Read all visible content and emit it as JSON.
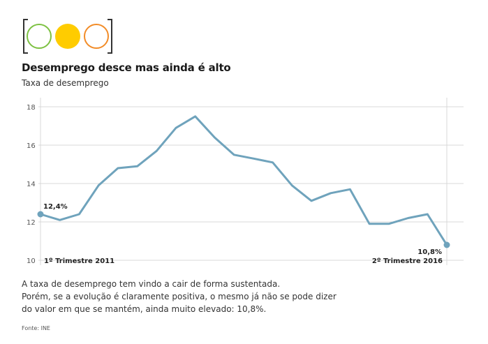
{
  "header": {
    "title": "Desemprego desce mas ainda é alto",
    "subtitle": "Taxa de desemprego"
  },
  "badge": {
    "icon": "traffic-light-icon",
    "bracket_color": "#333333",
    "lights": [
      {
        "name": "green-light",
        "fill": "none",
        "stroke": "#7dc142"
      },
      {
        "name": "yellow-light",
        "fill": "#ffcc00",
        "stroke": "#ffcc00"
      },
      {
        "name": "orange-light",
        "fill": "none",
        "stroke": "#f28c28"
      }
    ]
  },
  "chart_data": {
    "type": "line",
    "title": "Desemprego desce mas ainda é alto",
    "subtitle": "Taxa de desemprego",
    "xlabel": "",
    "ylabel": "",
    "ylim": [
      10,
      18.3
    ],
    "yticks": [
      10,
      12,
      14,
      16,
      18
    ],
    "grid": true,
    "line_color": "#6fa3bc",
    "categories": [
      "1º Trimestre 2011",
      "",
      "",
      "",
      "",
      "",
      "",
      "",
      "",
      "",
      "",
      "",
      "",
      "",
      "",
      "",
      "",
      "",
      "",
      "",
      "",
      "2º Trimestre 2016"
    ],
    "series": [
      {
        "values": [
          12.4,
          12.1,
          12.4,
          13.9,
          14.8,
          14.9,
          15.7,
          16.9,
          17.5,
          16.4,
          15.5,
          15.3,
          15.1,
          13.9,
          13.1,
          13.5,
          13.7,
          11.9,
          11.9,
          12.2,
          12.4,
          10.8
        ]
      }
    ],
    "annotations": [
      {
        "index": 0,
        "text": "12,4%"
      },
      {
        "index": 21,
        "text": "10,8%"
      }
    ],
    "category_labels": [
      {
        "index": 0,
        "text": "1º Trimestre 2011"
      },
      {
        "index": 21,
        "text": "2º Trimestre 2016"
      }
    ]
  },
  "note": {
    "lines": [
      "A taxa de desemprego tem vindo a cair de forma sustentada.",
      "Porém, se a evolução é claramente positiva, o mesmo já não se pode dizer",
      "do valor em que se mantém, ainda muito elevado: 10,8%."
    ]
  },
  "source": "Fonte: INE"
}
